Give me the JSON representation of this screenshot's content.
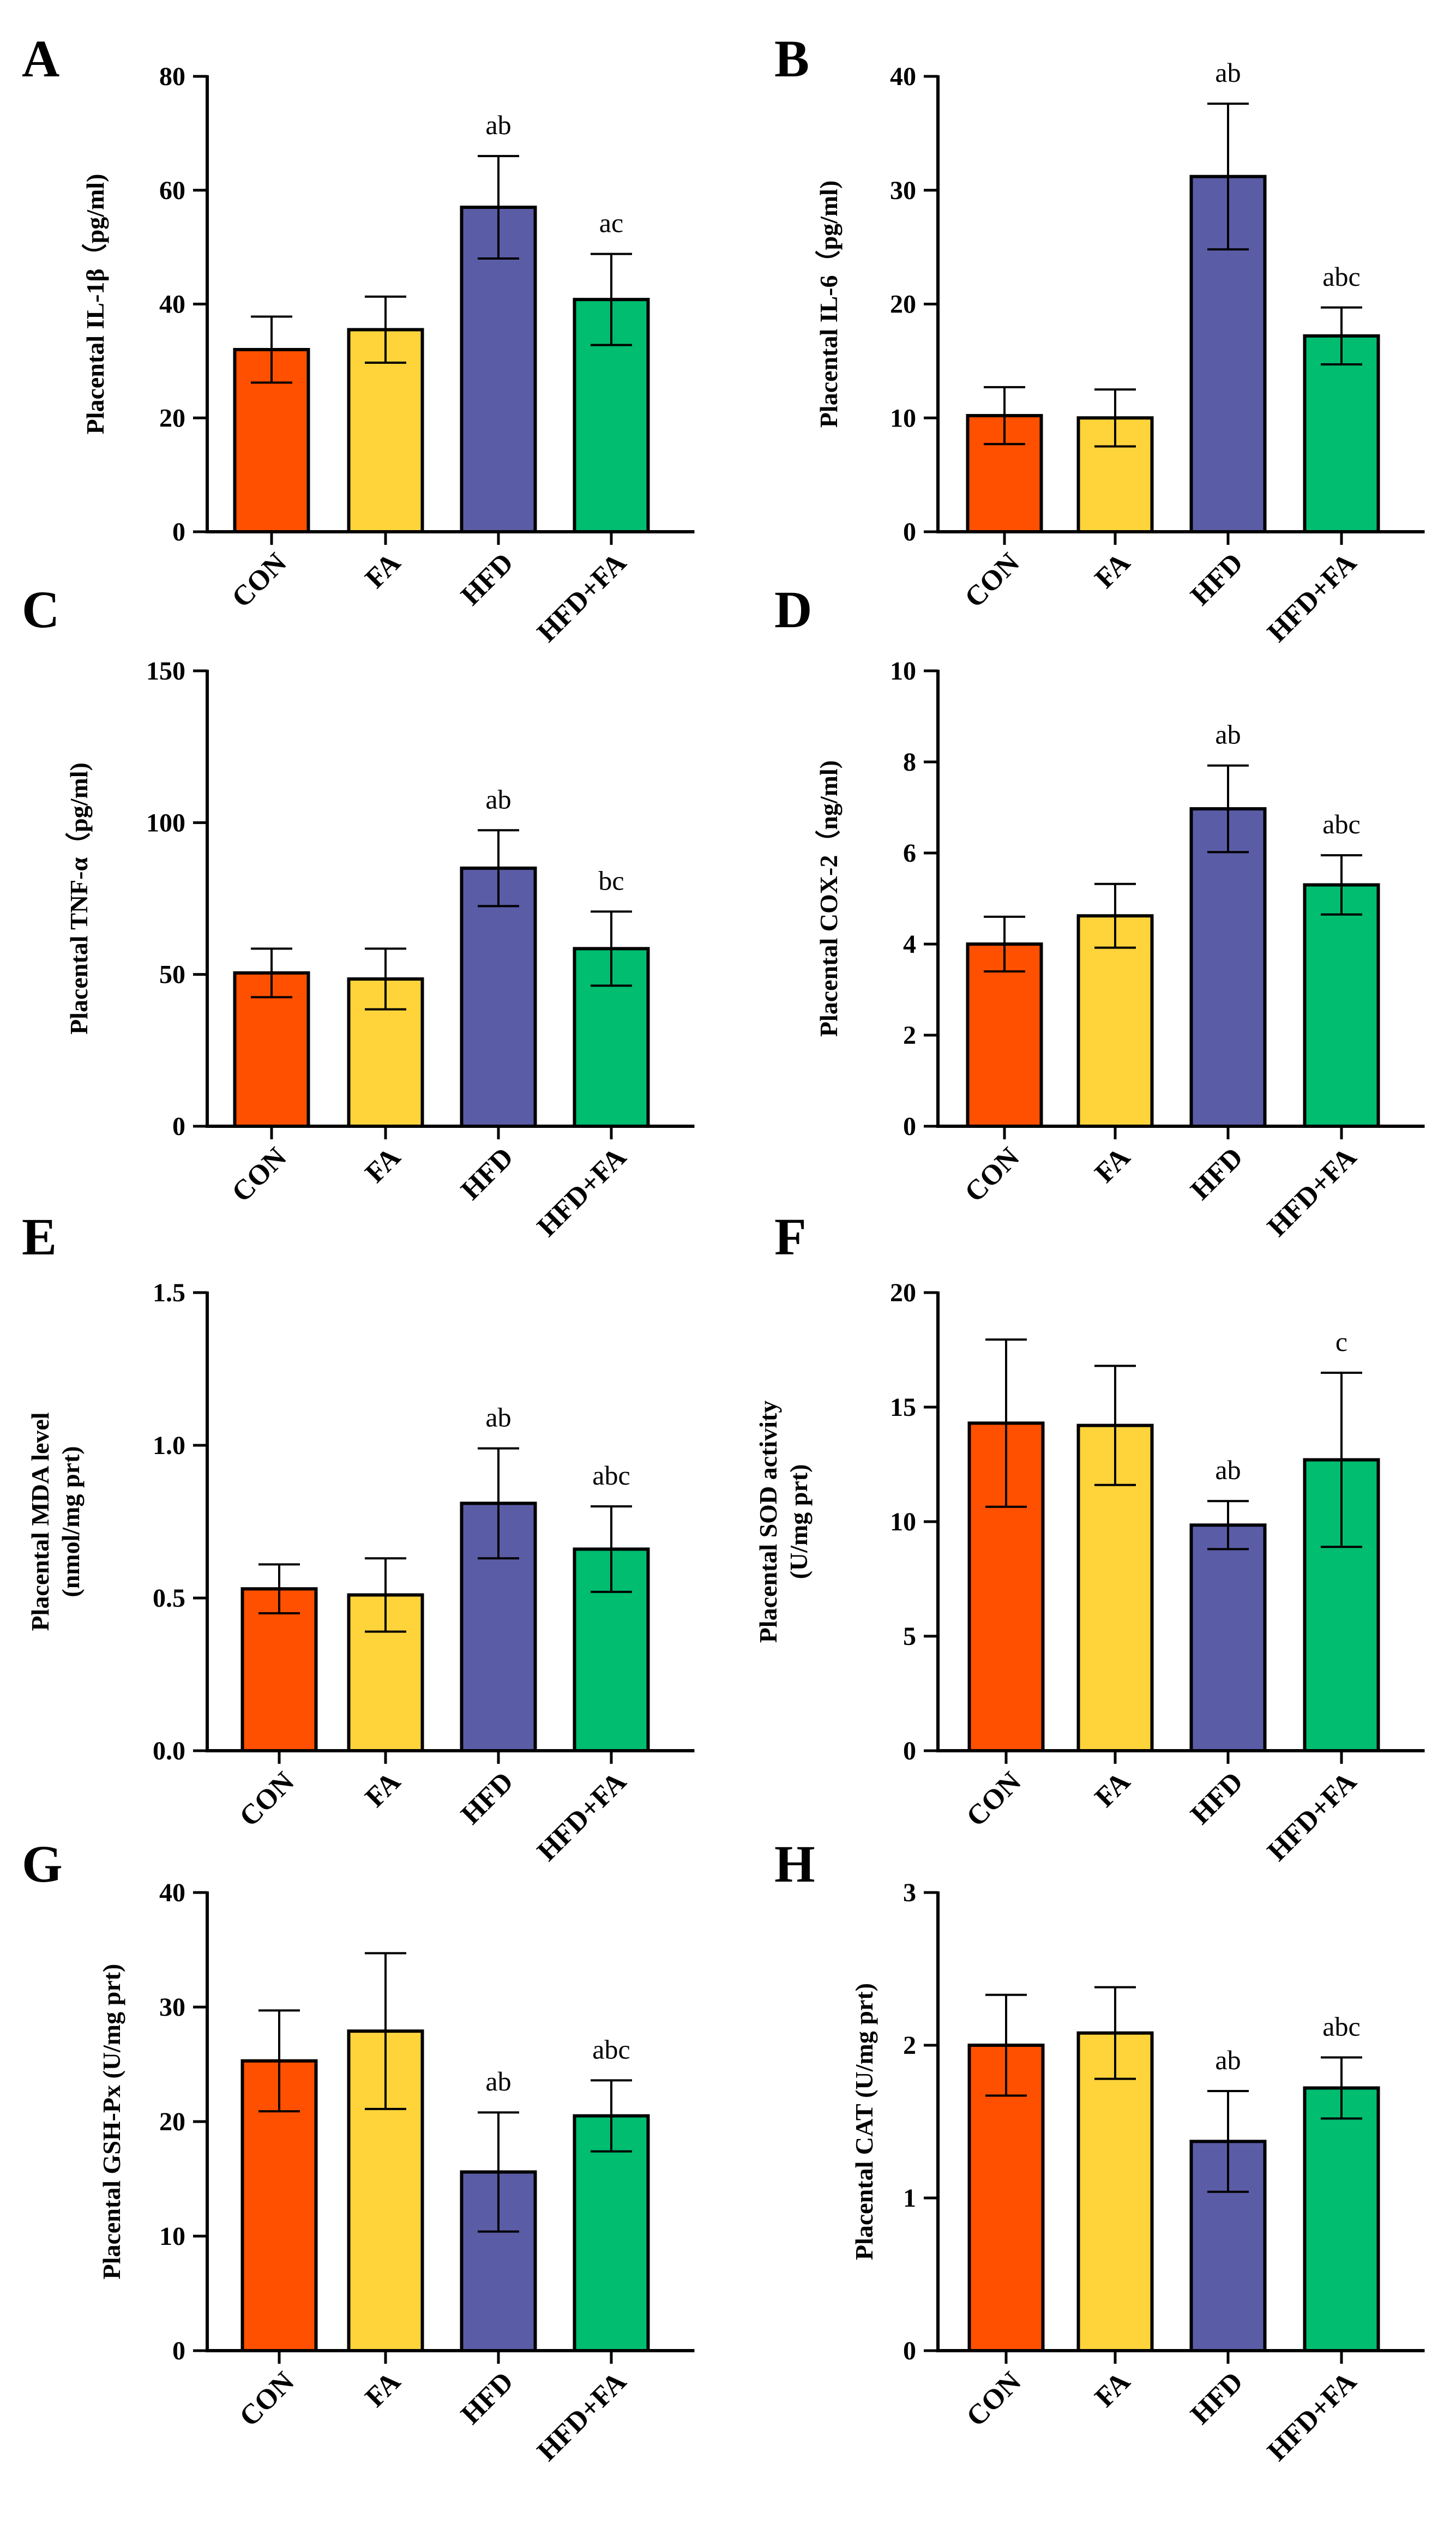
{
  "chart_data": [
    {
      "panel": "A",
      "type": "bar",
      "categories": [
        "CON",
        "FA",
        "HFD",
        "HFD+FA"
      ],
      "values": [
        32,
        35.5,
        57,
        40.8
      ],
      "errors": [
        5.8,
        5.8,
        9,
        8
      ],
      "annotations": [
        "",
        "",
        "ab",
        "ac"
      ],
      "ylabel": [
        "Placental IL-1β（pg/ml)"
      ],
      "yticks": [
        "0",
        "20",
        "40",
        "60",
        "80"
      ],
      "ylim": [
        0,
        80
      ],
      "colors": [
        "#FF5000",
        "#FFD43B",
        "#5B5CA6",
        "#00BD70"
      ]
    },
    {
      "panel": "B",
      "type": "bar",
      "categories": [
        "CON",
        "FA",
        "HFD",
        "HFD+FA"
      ],
      "values": [
        10.2,
        10,
        31.2,
        17.2
      ],
      "errors": [
        2.5,
        2.5,
        6.4,
        2.5
      ],
      "annotations": [
        "",
        "",
        "ab",
        "abc"
      ],
      "ylabel": [
        "Placental IL-6（pg/ml)"
      ],
      "yticks": [
        "0",
        "10",
        "20",
        "30",
        "40"
      ],
      "ylim": [
        0,
        40
      ],
      "colors": [
        "#FF5000",
        "#FFD43B",
        "#5B5CA6",
        "#00BD70"
      ]
    },
    {
      "panel": "C",
      "type": "bar",
      "categories": [
        "CON",
        "FA",
        "HFD",
        "HFD+FA"
      ],
      "values": [
        50.5,
        48.5,
        85,
        58.5
      ],
      "errors": [
        8,
        10,
        12.5,
        12.2
      ],
      "annotations": [
        "",
        "",
        "ab",
        "bc"
      ],
      "ylabel": [
        "Placental TNF-α（pg/ml)"
      ],
      "yticks": [
        "0",
        "50",
        "100",
        "150"
      ],
      "ylim": [
        0,
        150
      ],
      "colors": [
        "#FF5000",
        "#FFD43B",
        "#5B5CA6",
        "#00BD70"
      ]
    },
    {
      "panel": "D",
      "type": "bar",
      "categories": [
        "CON",
        "FA",
        "HFD",
        "HFD+FA"
      ],
      "values": [
        4,
        4.62,
        6.97,
        5.3
      ],
      "errors": [
        0.6,
        0.7,
        0.95,
        0.65
      ],
      "annotations": [
        "",
        "",
        "ab",
        "abc"
      ],
      "ylabel": [
        "Placental COX-2（ng/ml)"
      ],
      "yticks": [
        "0",
        "2",
        "4",
        "6",
        "8",
        "10"
      ],
      "ylim": [
        0,
        10
      ],
      "colors": [
        "#FF5000",
        "#FFD43B",
        "#5B5CA6",
        "#00BD70"
      ]
    },
    {
      "panel": "E",
      "type": "bar",
      "categories": [
        "CON",
        "FA",
        "HFD",
        "HFD+FA"
      ],
      "values": [
        0.53,
        0.51,
        0.81,
        0.66
      ],
      "errors": [
        0.08,
        0.12,
        0.18,
        0.14
      ],
      "annotations": [
        "",
        "",
        "ab",
        "abc"
      ],
      "ylabel": [
        "Placental MDA level",
        "(nmol/mg prt)"
      ],
      "yticks": [
        "0.0",
        "0.5",
        "1.0",
        "1.5"
      ],
      "ylim": [
        0,
        1.5
      ],
      "colors": [
        "#FF5000",
        "#FFD43B",
        "#5B5CA6",
        "#00BD70"
      ]
    },
    {
      "panel": "F",
      "type": "bar",
      "categories": [
        "CON",
        "FA",
        "HFD",
        "HFD+FA"
      ],
      "values": [
        14.3,
        14.2,
        9.85,
        12.7
      ],
      "errors": [
        3.65,
        2.6,
        1.05,
        3.8
      ],
      "annotations": [
        "",
        "",
        "ab",
        "c"
      ],
      "ylabel": [
        "Placental SOD activity",
        "(U/mg prt)"
      ],
      "yticks": [
        "0",
        "5",
        "10",
        "15",
        "20"
      ],
      "ylim": [
        0,
        20
      ],
      "colors": [
        "#FF5000",
        "#FFD43B",
        "#5B5CA6",
        "#00BD70"
      ]
    },
    {
      "panel": "G",
      "type": "bar",
      "categories": [
        "CON",
        "FA",
        "HFD",
        "HFD+FA"
      ],
      "values": [
        25.3,
        27.9,
        15.6,
        20.5
      ],
      "errors": [
        4.4,
        6.8,
        5.2,
        3.1
      ],
      "annotations": [
        "",
        "",
        "ab",
        "abc"
      ],
      "ylabel": [
        "Placental GSH-Px (U/mg prt)"
      ],
      "yticks": [
        "0",
        "10",
        "20",
        "30",
        "40"
      ],
      "ylim": [
        0,
        40
      ],
      "colors": [
        "#FF5000",
        "#FFD43B",
        "#5B5CA6",
        "#00BD70"
      ]
    },
    {
      "panel": "H",
      "type": "bar",
      "categories": [
        "CON",
        "FA",
        "HFD",
        "HFD+FA"
      ],
      "values": [
        2.0,
        2.08,
        1.37,
        1.72
      ],
      "errors": [
        0.33,
        0.3,
        0.33,
        0.2
      ],
      "annotations": [
        "",
        "",
        "ab",
        "abc"
      ],
      "ylabel": [
        "Placental CAT (U/mg prt)"
      ],
      "yticks": [
        "0",
        "1",
        "2",
        "3"
      ],
      "ylim": [
        0,
        3
      ],
      "colors": [
        "#FF5000",
        "#FFD43B",
        "#5B5CA6",
        "#00BD70"
      ]
    }
  ]
}
